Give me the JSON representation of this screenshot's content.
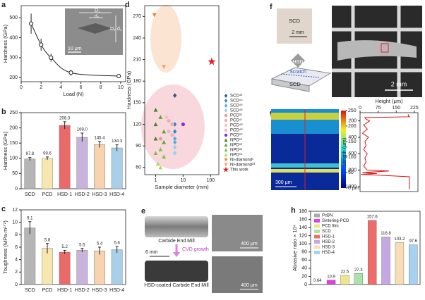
{
  "chart_data": [
    {
      "panel": "a",
      "type": "scatter",
      "xlabel": "Load (N)",
      "ylabel": "Hardness (GPa)",
      "x": [
        1,
        2,
        3,
        5,
        9.8
      ],
      "values": [
        470,
        365,
        300,
        225,
        208
      ],
      "errors": [
        50,
        30,
        20,
        15,
        8
      ],
      "color": "#222222",
      "fit": true,
      "xlim": [
        0,
        10.5
      ],
      "xticks": [
        0,
        2,
        4,
        6,
        8,
        10
      ],
      "ylim": [
        180,
        560
      ],
      "yticks": [
        200,
        300,
        400,
        500
      ],
      "inset": {
        "labels": [
          "D₁",
          "d₁",
          "D₂",
          "d₂"
        ],
        "scale": "10 μm"
      }
    },
    {
      "panel": "b",
      "type": "bar",
      "ylabel": "Hardness (GPa)",
      "categories": [
        "SCD",
        "PCD",
        "HSD-1",
        "HSD-2",
        "HSD-3",
        "HSD-4"
      ],
      "values": [
        97.8,
        99.6,
        208.3,
        169.0,
        145.4,
        134.3
      ],
      "value_labels": [
        "97.8",
        "99.6",
        "208.3",
        "169.0",
        "145.4",
        "134.3"
      ],
      "errors": [
        5,
        5,
        12,
        14,
        10,
        10
      ],
      "colors": [
        "#b5b5b5",
        "#f6e7b0",
        "#ea6a6a",
        "#c7b3dc",
        "#f8d3b0",
        "#a9cfe8"
      ],
      "ylim": [
        0,
        250
      ],
      "yticks": [
        0,
        50,
        100,
        150,
        200,
        250
      ]
    },
    {
      "panel": "c",
      "type": "bar",
      "ylabel": "Toughness (MPa·m¹ᐟ²)",
      "categories": [
        "SCD",
        "PCD",
        "HSD-1",
        "HSD-2",
        "HSD-3",
        "HSD-4"
      ],
      "values": [
        9.1,
        5.8,
        5.2,
        5.5,
        5.4,
        5.6
      ],
      "errors": [
        1.0,
        0.8,
        0.3,
        0.3,
        0.6,
        0.5
      ],
      "colors": [
        "#b5b5b5",
        "#f6e7b0",
        "#ea6a6a",
        "#c7b3dc",
        "#f8d3b0",
        "#a9cfe8"
      ],
      "ylim": [
        0,
        12
      ],
      "yticks": [
        0,
        2,
        4,
        6,
        8,
        10,
        12
      ]
    },
    {
      "panel": "d",
      "type": "scatter",
      "xlabel": "Sample diameter (mm)",
      "ylabel": "Hardness (GPa)",
      "xlog": true,
      "xlim": [
        0.4,
        200
      ],
      "xticks": [
        1,
        10,
        100
      ],
      "ylim": [
        50,
        285
      ],
      "yticks": [
        60,
        90,
        120,
        150,
        180,
        210,
        240,
        270
      ],
      "legend": "right",
      "series": [
        {
          "name": "SCD⁴³",
          "color": "#2a5a8a",
          "marker": "diamond",
          "x": [
            5
          ],
          "values": [
            160
          ]
        },
        {
          "name": "SCD⁴⁴",
          "color": "#2f86cc",
          "marker": "diamond",
          "x": [
            5,
            5
          ],
          "values": [
            120,
            110
          ]
        },
        {
          "name": "SCD⁴⁵",
          "color": "#4fb0e6",
          "marker": "diamond",
          "x": [
            5,
            5
          ],
          "values": [
            100,
            95
          ]
        },
        {
          "name": "SCD⁴⁶",
          "color": "#8fd2f2",
          "marker": "diamond",
          "x": [
            5,
            5
          ],
          "values": [
            88,
            80
          ]
        },
        {
          "name": "PCD³²",
          "color": "#e89a9a",
          "marker": "circle",
          "x": [
            1.5
          ],
          "values": [
            100
          ]
        },
        {
          "name": "PCD⁴⁷",
          "color": "#f0b0a8",
          "marker": "circle",
          "x": [
            3,
            4
          ],
          "values": [
            125,
            120
          ]
        },
        {
          "name": "PCD⁴⁸",
          "color": "#f4c4bc",
          "marker": "circle",
          "x": [
            2.5
          ],
          "values": [
            130
          ]
        },
        {
          "name": "PCD⁴⁹",
          "color": "#e8b4c8",
          "marker": "circle",
          "x": [
            3,
            4
          ],
          "values": [
            110,
            105
          ]
        },
        {
          "name": "PCD⁵⁰",
          "color": "#8a2be2",
          "marker": "circle",
          "x": [
            10
          ],
          "values": [
            120
          ]
        },
        {
          "name": "NPD⁵¹",
          "color": "#3a8a20",
          "marker": "triangle",
          "x": [
            1,
            1,
            1
          ],
          "values": [
            140,
            120,
            100
          ]
        },
        {
          "name": "NPD⁵²",
          "color": "#5aa830",
          "marker": "triangle",
          "x": [
            1.5,
            2,
            2
          ],
          "values": [
            130,
            110,
            95
          ]
        },
        {
          "name": "NPD⁵³",
          "color": "#80c040",
          "marker": "triangle",
          "x": [
            1.5,
            2,
            1
          ],
          "values": [
            85,
            75,
            80
          ]
        },
        {
          "name": "NPD⁵⁴",
          "color": "#a8d868",
          "marker": "triangle",
          "x": [
            1.2,
            1.5
          ],
          "values": [
            65,
            60
          ]
        },
        {
          "name": "Nt-diamond¹",
          "color": "#f08030",
          "marker": "inverted-triangle",
          "x": [
            0.9
          ],
          "values": [
            272
          ]
        },
        {
          "name": "Nt-diamond²³",
          "color": "#f4a060",
          "marker": "inverted-triangle",
          "x": [
            2
          ],
          "values": [
            200
          ]
        },
        {
          "name": "This work",
          "color": "#e02020",
          "marker": "star",
          "x": [
            110
          ],
          "values": [
            207
          ]
        }
      ]
    },
    {
      "type": "line",
      "orientation": "vertical",
      "xlabel": "Length (μm)",
      "ylabel": "Height (μm)",
      "color": "#e01010",
      "x": [
        120,
        140,
        150,
        160,
        180,
        200,
        250,
        300,
        350,
        400,
        450,
        500,
        550,
        600,
        650,
        700,
        750,
        800,
        810,
        820,
        830,
        840,
        850,
        880,
        920,
        960,
        1000,
        1030
      ],
      "values": [
        200,
        200,
        205,
        20,
        25,
        40,
        15,
        30,
        10,
        35,
        20,
        25,
        15,
        30,
        20,
        25,
        15,
        30,
        120,
        60,
        10,
        70,
        5,
        205,
        205,
        205,
        205,
        205
      ],
      "xlim": [
        100,
        1060
      ],
      "xticks": [
        200,
        400,
        600,
        800,
        1000
      ],
      "ylim": [
        0,
        240
      ],
      "yticks": [
        0,
        75,
        150,
        225
      ]
    },
    {
      "panel": "h",
      "type": "bar",
      "ylabel": "Abrasive ratio × 10⁴",
      "legend": "upper left",
      "categories": [
        "PcBN",
        "Sintering-PCD",
        "PCD film",
        "SCD",
        "HSD-1",
        "HSD-2",
        "HSD-3",
        "HSD-4"
      ],
      "values": [
        0.64,
        10.9,
        22.5,
        27.3,
        157.6,
        116.8,
        103.2,
        97.6
      ],
      "value_labels": [
        "0.64",
        "10.9",
        "22.5",
        "27.3",
        "157.6",
        "116.8",
        "103.2",
        "97.6"
      ],
      "colors": [
        "#a8a8a8",
        "#e040e0",
        "#f2e48a",
        "#a8e4a8",
        "#f06a6a",
        "#c4a8e2",
        "#f8dcb4",
        "#a4d2f0"
      ],
      "ylim": [
        0,
        180
      ],
      "yticks": [
        0,
        20,
        40,
        60,
        80,
        100,
        120,
        140,
        160,
        180
      ]
    }
  ],
  "figure": {
    "e": {
      "panel": "e",
      "top": "Carbide End Mill",
      "arrow": "CVD growth",
      "bottom": "HSD-coated Carbide End Mill",
      "scale": "6 mm",
      "scale_top": "400 μm",
      "scale_bottom": "400 μm"
    },
    "f": {
      "panel": "f",
      "sample": "SCD",
      "scale_small": "2 mm",
      "indenter": "HSD",
      "scratch": "Scratch",
      "substrate": "SCD",
      "scale_large": "2 mm"
    },
    "g": {
      "panel": "g",
      "scale": "300 μm",
      "colorbar_ticks": [
        {
          "value": 0,
          "label": "0 μm"
        },
        50,
        100,
        150,
        200,
        250
      ],
      "colorbar_lim": [
        0,
        250
      ]
    }
  }
}
